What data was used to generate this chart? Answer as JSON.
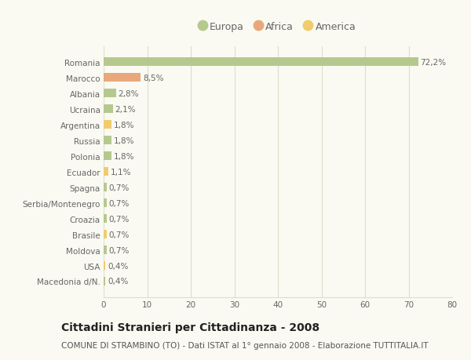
{
  "categories": [
    "Romania",
    "Marocco",
    "Albania",
    "Ucraina",
    "Argentina",
    "Russia",
    "Polonia",
    "Ecuador",
    "Spagna",
    "Serbia/Montenegro",
    "Croazia",
    "Brasile",
    "Moldova",
    "USA",
    "Macedonia d/N."
  ],
  "values": [
    72.2,
    8.5,
    2.8,
    2.1,
    1.8,
    1.8,
    1.8,
    1.1,
    0.7,
    0.7,
    0.7,
    0.7,
    0.7,
    0.4,
    0.4
  ],
  "labels": [
    "72,2%",
    "8,5%",
    "2,8%",
    "2,1%",
    "1,8%",
    "1,8%",
    "1,8%",
    "1,1%",
    "0,7%",
    "0,7%",
    "0,7%",
    "0,7%",
    "0,7%",
    "0,4%",
    "0,4%"
  ],
  "continent": [
    "Europa",
    "Africa",
    "Europa",
    "Europa",
    "America",
    "Europa",
    "Europa",
    "America",
    "Europa",
    "Europa",
    "Europa",
    "America",
    "Europa",
    "America",
    "Europa"
  ],
  "colors": {
    "Europa": "#b5c98e",
    "Africa": "#e8a87c",
    "America": "#f0cc6e"
  },
  "legend": [
    {
      "label": "Europa",
      "color": "#b5c98e"
    },
    {
      "label": "Africa",
      "color": "#e8a87c"
    },
    {
      "label": "America",
      "color": "#f0cc6e"
    }
  ],
  "xlim": [
    0,
    80
  ],
  "xticks": [
    0,
    10,
    20,
    30,
    40,
    50,
    60,
    70,
    80
  ],
  "title": "Cittadini Stranieri per Cittadinanza - 2008",
  "subtitle": "COMUNE DI STRAMBINO (TO) - Dati ISTAT al 1° gennaio 2008 - Elaborazione TUTTITALIA.IT",
  "background_color": "#fafaf2",
  "bar_height": 0.55,
  "grid_color": "#ddddcc",
  "label_fontsize": 7.5,
  "title_fontsize": 10,
  "subtitle_fontsize": 7.5,
  "tick_fontsize": 7.5,
  "legend_fontsize": 9
}
